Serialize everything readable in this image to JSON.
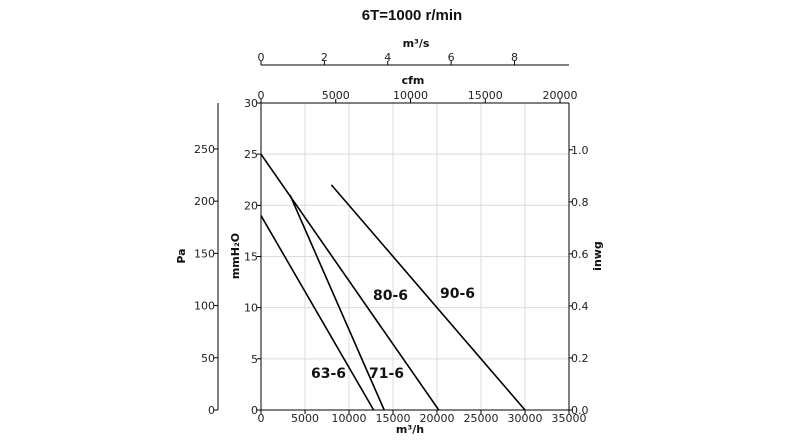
{
  "chart_data": {
    "type": "line",
    "title": "6T=1000 r/min",
    "x_axes": {
      "bottom": {
        "label": "m³/h",
        "range": [
          0,
          35000
        ],
        "ticks": [
          0,
          5000,
          10000,
          15000,
          20000,
          25000,
          30000,
          35000
        ]
      },
      "top_cfm": {
        "label": "cfm",
        "range": [
          0,
          20600
        ],
        "ticks": [
          0,
          5000,
          10000,
          15000,
          20000
        ]
      },
      "top_m3s": {
        "label": "m³/s",
        "range": [
          0,
          9.72
        ],
        "ticks": [
          0,
          2,
          4,
          6,
          8
        ]
      }
    },
    "y_axes": {
      "main": {
        "label": "mmH₂O",
        "range": [
          0,
          30
        ],
        "ticks": [
          0,
          5,
          10,
          15,
          20,
          25,
          30
        ]
      },
      "pa": {
        "label": "Pa",
        "range": [
          0,
          294
        ],
        "ticks": [
          0,
          50,
          100,
          150,
          200,
          250
        ]
      },
      "inwg": {
        "label": "inwg",
        "range": [
          0,
          1.18
        ],
        "ticks": [
          0.0,
          0.2,
          0.4,
          0.6,
          0.8,
          1.0
        ]
      }
    },
    "grid": true,
    "series": [
      {
        "name": "63-6",
        "points": [
          [
            0,
            19
          ],
          [
            12800,
            0
          ]
        ]
      },
      {
        "name": "71-6",
        "points": [
          [
            3300,
            21
          ],
          [
            14000,
            0
          ]
        ]
      },
      {
        "name": "80-6",
        "points": [
          [
            0,
            25
          ],
          [
            20200,
            0
          ]
        ]
      },
      {
        "name": "90-6",
        "points": [
          [
            8000,
            22
          ],
          [
            30000,
            0
          ]
        ]
      }
    ]
  }
}
